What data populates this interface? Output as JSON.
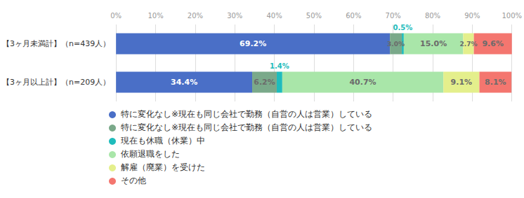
{
  "chart_data": {
    "type": "bar",
    "orientation": "horizontal",
    "stacked": true,
    "data_labels": true,
    "grid": true,
    "categories": [
      "【3ヶ月未満計】（n=439人）",
      "【3ヶ月以上計】（n=209人）"
    ],
    "xlim": [
      0,
      100
    ],
    "xticks": [
      {
        "value": 0,
        "label": "0%"
      },
      {
        "value": 10,
        "label": "10%"
      },
      {
        "value": 20,
        "label": "20%"
      },
      {
        "value": 30,
        "label": "30%"
      },
      {
        "value": 40,
        "label": "40%"
      },
      {
        "value": 50,
        "label": "50%"
      },
      {
        "value": 60,
        "label": "60%"
      },
      {
        "value": 70,
        "label": "70%"
      },
      {
        "value": 80,
        "label": "80%"
      },
      {
        "value": 90,
        "label": "90%"
      },
      {
        "value": 100,
        "label": "100%"
      }
    ],
    "series": [
      {
        "name": "特に変化なし※現在も同じ会社で勤務（自営の人は営業）している",
        "color": "#4a6fc7",
        "values": [
          69.2,
          34.4
        ],
        "value_labels": [
          "69.2%",
          "34.4%"
        ]
      },
      {
        "name": "特に変化なし※現在も同じ会社で勤務（自営の人は営業）している",
        "color": "#7aa98a",
        "values": [
          3.0,
          6.2
        ],
        "value_labels": [
          "3.0%",
          "6.2%"
        ]
      },
      {
        "name": "現在も休職（休業）中",
        "color": "#1fbcbc",
        "values": [
          0.5,
          1.4
        ],
        "value_labels": [
          "0.5%",
          "1.4%"
        ]
      },
      {
        "name": "依願退職をした",
        "color": "#a9e6a9",
        "values": [
          15.0,
          40.7
        ],
        "value_labels": [
          "15.0%",
          "40.7%"
        ]
      },
      {
        "name": "解雇（廃業）を受けた",
        "color": "#e4ef8c",
        "values": [
          2.7,
          9.1
        ],
        "value_labels": [
          "2.7%",
          "9.1%"
        ]
      },
      {
        "name": "その他",
        "color": "#f4766f",
        "values": [
          9.6,
          8.1
        ],
        "value_labels": [
          "9.6%",
          "8.1%"
        ]
      }
    ]
  }
}
